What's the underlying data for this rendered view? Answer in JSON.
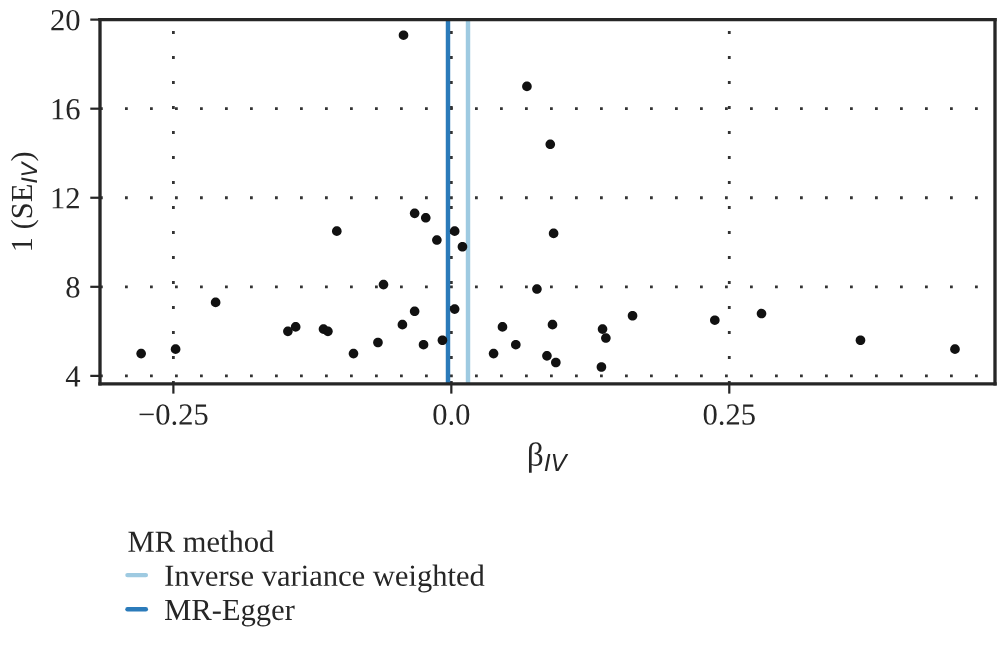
{
  "chart_data": {
    "type": "scatter",
    "xlabel": "β$_{IV}$",
    "ylabel": "1 (SE$_{IV}$)",
    "legend_title": "MR method",
    "x": [
      -0.279,
      -0.248,
      -0.212,
      -0.147,
      -0.14,
      -0.115,
      -0.111,
      -0.103,
      -0.088,
      -0.066,
      -0.061,
      -0.043,
      -0.044,
      -0.033,
      -0.033,
      -0.023,
      -0.025,
      -0.013,
      -0.008,
      0.003,
      0.003,
      0.01,
      0.038,
      0.068,
      0.089,
      0.092,
      0.077,
      0.046,
      0.058,
      0.091,
      0.086,
      0.094,
      0.136,
      0.139,
      0.135,
      0.163,
      0.237,
      0.279,
      0.368,
      0.453
    ],
    "series": [
      {
        "color": "#111111",
        "values": [
          5.0,
          5.2,
          7.3,
          6.0,
          6.2,
          6.1,
          6.0,
          10.5,
          5.0,
          5.5,
          8.1,
          19.3,
          6.3,
          6.9,
          11.3,
          11.1,
          5.4,
          10.1,
          5.6,
          10.5,
          7.0,
          9.8,
          5.0,
          17.0,
          14.4,
          10.4,
          7.9,
          6.2,
          5.4,
          6.3,
          4.9,
          4.6,
          6.1,
          5.7,
          4.4,
          6.7,
          6.5,
          6.8,
          5.6,
          5.2
        ]
      }
    ],
    "ref_lines": [
      {
        "axis": "x",
        "value": 0.015,
        "label": "Inverse variance weighted",
        "color": "#9ecae1"
      },
      {
        "axis": "x",
        "value": -0.003,
        "label": "MR-Egger",
        "color": "#2b7bba"
      }
    ],
    "xlim": [
      -0.316,
      0.489
    ],
    "ylim": [
      3.64,
      20
    ],
    "xticks": [
      {
        "value": -0.25,
        "label": "−0.25"
      },
      {
        "value": 0,
        "label": "0.0"
      },
      {
        "value": 0.25,
        "label": "0.25"
      }
    ],
    "yticks": [
      4,
      8,
      12,
      16,
      20
    ],
    "grid": true,
    "legend": "bottom left",
    "marker": "circle"
  }
}
